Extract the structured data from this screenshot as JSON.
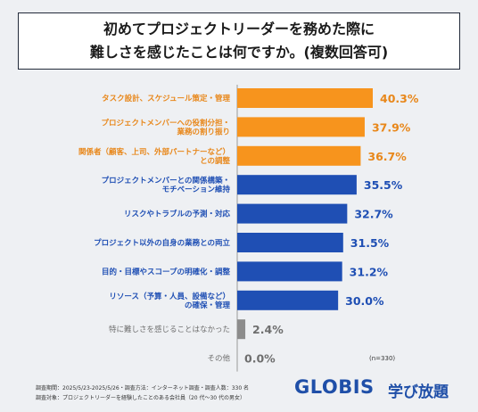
{
  "title": {
    "line1": "初めてプロジェクトリーダーを務めた際に",
    "line2": "難しさを感じたことは何ですか。(複数回答可)"
  },
  "chart_data": {
    "type": "bar",
    "orientation": "horizontal",
    "categories": [
      [
        "タスク設計、スケジュール策定・管理"
      ],
      [
        "プロジェクトメンバーへの役割分担・",
        "業務の割り振り"
      ],
      [
        "関係者（顧客、上司、外部パートナーなど）",
        "との調整"
      ],
      [
        "プロジェクトメンバーとの関係構築・",
        "モチベーション維持"
      ],
      [
        "リスクやトラブルの予測・対応"
      ],
      [
        "プロジェクト以外の自身の業務との両立"
      ],
      [
        "目的・目標やスコープの明確化・調整"
      ],
      [
        "リソース（予算・人員、設備など）",
        "の確保・管理"
      ],
      [
        "特に難しさを感じることはなかった"
      ],
      [
        "その他"
      ]
    ],
    "values": [
      40.3,
      37.9,
      36.7,
      35.5,
      32.7,
      31.5,
      31.2,
      30.0,
      2.4,
      0.0
    ],
    "value_labels": [
      "40.3%",
      "37.9%",
      "36.7%",
      "35.5%",
      "32.7%",
      "31.5%",
      "31.2%",
      "30.0%",
      "2.4%",
      "0.0%"
    ],
    "groups": [
      "top3",
      "top3",
      "top3",
      "main",
      "main",
      "main",
      "main",
      "main",
      "none",
      "none"
    ],
    "colors": {
      "top3": "#f7941d",
      "main": "#1f4fb4",
      "none": "#8c8c8c"
    },
    "label_colors": {
      "top3": "#e8871a",
      "main": "#1f4fb4",
      "none": "#6e6e6e"
    },
    "xlim": [
      0,
      40.3
    ],
    "grid": false,
    "legend": "none"
  },
  "sample_size": "(n=330)",
  "footer": {
    "line1": "調査期間：2025/5/23-2025/5/26・調査方法：インターネット調査・調査人数：330 名",
    "line2": "調査対象：プロジェクトリーダーを経験したことのある会社員（20 代～30 代の男女）"
  },
  "logo": {
    "brand": "GLOBIS",
    "service": "学び放題"
  }
}
